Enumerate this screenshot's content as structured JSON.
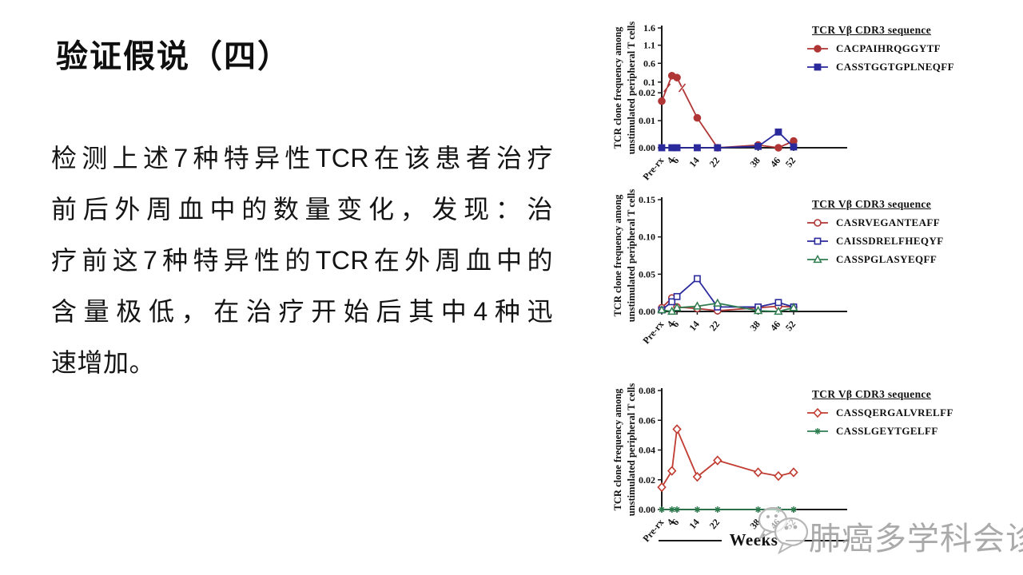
{
  "slide": {
    "title": "验证假说（四）",
    "body_lines": [
      "检测上述7种特异性TCR在该患者治疗",
      "前后外周血中的数量变化，发现：治",
      "疗前这7种特异性的TCR在外周血中的",
      "含量极低，在治疗开始后其中4种迅",
      "速增加。"
    ]
  },
  "charts_shared": {
    "y_axis_label_line1": "TCR clone frequency among",
    "y_axis_label_line2": "unstimulated peripheral T cells",
    "x_axis_label": "Weeks",
    "legend_title": "TCR Vβ CDR3 sequence",
    "x_categories": [
      {
        "label": "Pre-rx",
        "week": 0
      },
      {
        "label": "4",
        "week": 4
      },
      {
        "label": "6",
        "week": 6
      },
      {
        "label": "14",
        "week": 14
      },
      {
        "label": "22",
        "week": 22
      },
      {
        "label": "38",
        "week": 38
      },
      {
        "label": "46",
        "week": 46
      },
      {
        "label": "52",
        "week": 52
      }
    ],
    "axis_color": "#1a1a1a"
  },
  "chart_data": [
    {
      "type": "line",
      "title": "",
      "xlabel": "Weeks",
      "ylabel": "TCR clone frequency among unstimulated peripheral T cells",
      "x_categories": [
        "Pre-rx",
        "4",
        "6",
        "14",
        "22",
        "38",
        "46",
        "52"
      ],
      "y_ticks": [
        {
          "v": 0.0,
          "label": "0.00"
        },
        {
          "v": 0.01,
          "label": "0.01"
        },
        {
          "v": 0.02,
          "label": "0.02"
        },
        {
          "v": 0.1,
          "label": "0.1"
        },
        {
          "v": 0.6,
          "label": "0.6"
        },
        {
          "v": 1.1,
          "label": "1.1"
        },
        {
          "v": 1.6,
          "label": "1.6"
        }
      ],
      "axis_map": [
        [
          0,
          0
        ],
        [
          0.01,
          0.226
        ],
        [
          0.02,
          0.459
        ],
        [
          0.1,
          0.548
        ],
        [
          0.6,
          0.705
        ],
        [
          1.1,
          0.856
        ],
        [
          1.6,
          1.0
        ]
      ],
      "axis_break_frac": 0.5,
      "ylim_note": "broken axis: 0.00-0.02 then 0.1-1.6",
      "series": [
        {
          "name": "CACPAIHRQGGYTF",
          "color": "#b03535",
          "marker": "circle",
          "filled": true,
          "values": [
            0.017,
            0.27,
            0.22,
            0.011,
            0.0,
            0.001,
            0.0,
            0.0025
          ]
        },
        {
          "name": "CASSTGGTGPLNEQFF",
          "color": "#2a2a9c",
          "marker": "square",
          "filled": true,
          "values": [
            0.0,
            0.0,
            0.0,
            0.0,
            0.0,
            0.0005,
            0.0058,
            0.0003
          ]
        }
      ]
    },
    {
      "type": "line",
      "title": "",
      "xlabel": "Weeks",
      "ylabel": "TCR clone frequency among unstimulated peripheral T cells",
      "x_categories": [
        "Pre-rx",
        "4",
        "6",
        "14",
        "22",
        "38",
        "46",
        "52"
      ],
      "y_ticks": [
        {
          "v": 0.0,
          "label": "0.00"
        },
        {
          "v": 0.05,
          "label": "0.05"
        },
        {
          "v": 0.1,
          "label": "0.10"
        },
        {
          "v": 0.15,
          "label": "0.15"
        }
      ],
      "axis_map": [
        [
          0,
          0
        ],
        [
          0.15,
          1.0
        ]
      ],
      "ylim": [
        0,
        0.15
      ],
      "series": [
        {
          "name": "CASRVEGANTEAFF",
          "color": "#b03535",
          "marker": "circle",
          "filled": false,
          "values": [
            0.005,
            0.018,
            0.006,
            0.004,
            0.001,
            0.005,
            0.007,
            0.006
          ]
        },
        {
          "name": "CAISSDRELFHEQYF",
          "color": "#2a2a9c",
          "marker": "square",
          "filled": false,
          "values": [
            0.002,
            0.013,
            0.02,
            0.044,
            0.006,
            0.006,
            0.012,
            0.006
          ]
        },
        {
          "name": "CASSPGLASYEQFF",
          "color": "#2e7d4f",
          "marker": "triangle",
          "filled": false,
          "values": [
            0.002,
            0.0,
            0.005,
            0.007,
            0.011,
            0.001,
            0.0,
            0.005
          ]
        }
      ]
    },
    {
      "type": "line",
      "title": "",
      "xlabel": "Weeks",
      "ylabel": "TCR clone frequency among unstimulated peripheral T cells",
      "x_categories": [
        "Pre-rx",
        "4",
        "6",
        "14",
        "22",
        "38",
        "46",
        "52"
      ],
      "y_ticks": [
        {
          "v": 0.0,
          "label": "0.00"
        },
        {
          "v": 0.02,
          "label": "0.02"
        },
        {
          "v": 0.04,
          "label": "0.04"
        },
        {
          "v": 0.06,
          "label": "0.06"
        },
        {
          "v": 0.08,
          "label": "0.08"
        }
      ],
      "axis_map": [
        [
          0,
          0
        ],
        [
          0.08,
          1.0
        ]
      ],
      "ylim": [
        0,
        0.08
      ],
      "series": [
        {
          "name": "CASSQERGALVRELFF",
          "color": "#c03b30",
          "marker": "diamond",
          "filled": false,
          "values": [
            0.015,
            0.026,
            0.054,
            0.022,
            0.033,
            0.025,
            0.0225,
            0.025
          ]
        },
        {
          "name": "CASSLGEYTGELFF",
          "color": "#2e7d4f",
          "marker": "star",
          "filled": true,
          "values": [
            0,
            0,
            0,
            0,
            0,
            0,
            0,
            0
          ]
        }
      ]
    }
  ],
  "watermark": {
    "text": "肺癌多学科会诊",
    "icon": "wechat-bubbles-icon",
    "color": "#9c9c9c"
  }
}
